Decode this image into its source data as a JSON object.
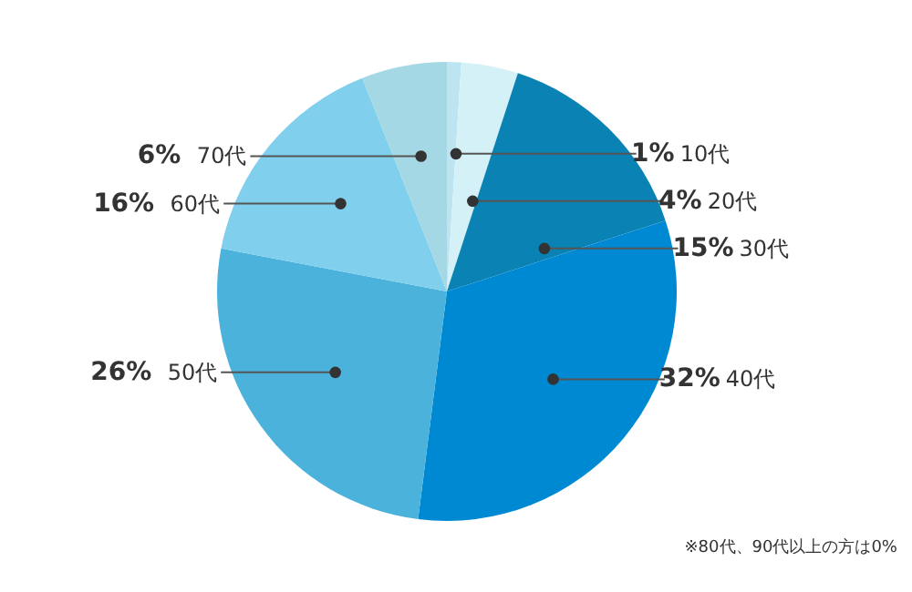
{
  "chart_data": {
    "type": "pie",
    "categories": [
      "10代",
      "20代",
      "30代",
      "40代",
      "50代",
      "60代",
      "70代"
    ],
    "values": [
      1,
      4,
      15,
      32,
      26,
      16,
      6
    ],
    "value_labels": [
      "1%",
      "4%",
      "15%",
      "32%",
      "26%",
      "16%",
      "6%"
    ],
    "colors": [
      "#bde5f1",
      "#d3f1f6",
      "#0a82b4",
      "#0089d3",
      "#4bb2dc",
      "#80d0ed",
      "#a3d8e4"
    ],
    "annotations": [
      "※80代、90代以上の方は0%"
    ]
  }
}
